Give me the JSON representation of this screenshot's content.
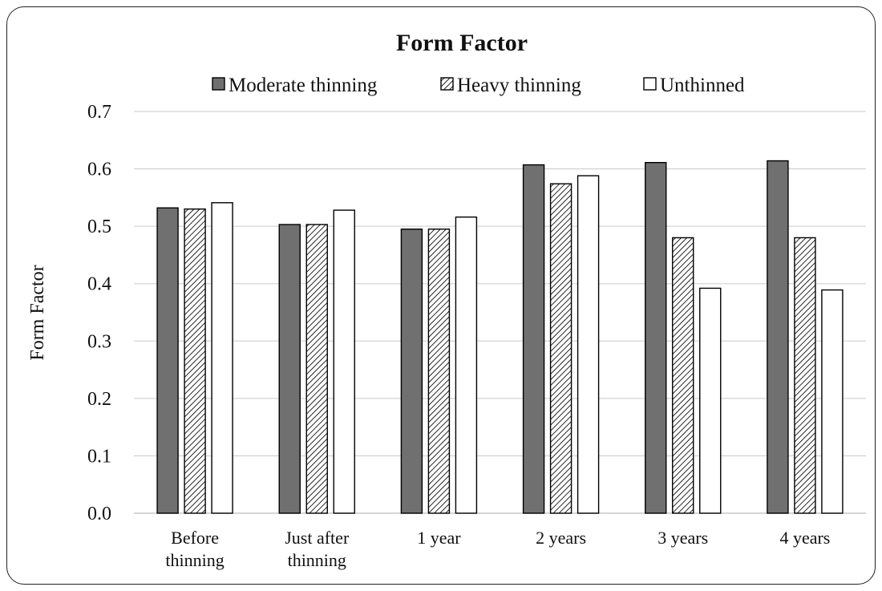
{
  "chart_data": {
    "type": "bar",
    "title": "Form Factor",
    "xlabel": "",
    "ylabel": "Form Factor",
    "ylim": [
      0,
      0.7
    ],
    "yticks": [
      "0.0",
      "0.1",
      "0.2",
      "0.3",
      "0.4",
      "0.5",
      "0.6",
      "0.7"
    ],
    "categories": [
      [
        "Before",
        "thinning"
      ],
      [
        "Just after",
        "thinning"
      ],
      [
        "1 year"
      ],
      [
        "2 years"
      ],
      [
        "3 years"
      ],
      [
        "4 years"
      ]
    ],
    "series": [
      {
        "name": "Moderate thinning",
        "style": "solid",
        "color": "#707070",
        "values": [
          0.532,
          0.503,
          0.495,
          0.607,
          0.611,
          0.614
        ]
      },
      {
        "name": "Heavy thinning",
        "style": "hatched",
        "color": "#ffffff",
        "values": [
          0.53,
          0.503,
          0.495,
          0.574,
          0.48,
          0.48
        ]
      },
      {
        "name": "Unthinned",
        "style": "hollow",
        "color": "#ffffff",
        "values": [
          0.541,
          0.528,
          0.516,
          0.588,
          0.392,
          0.389
        ]
      }
    ],
    "grid": true,
    "legend": "top-center"
  }
}
